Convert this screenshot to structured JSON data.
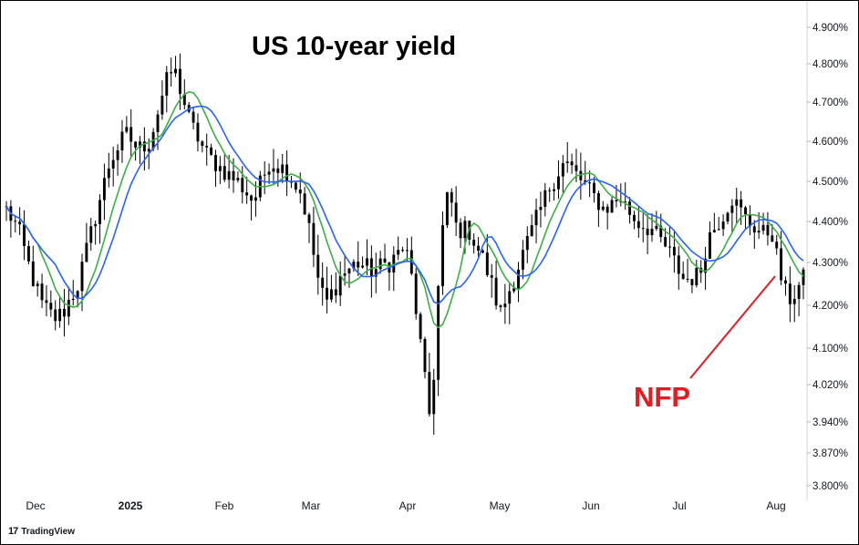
{
  "chart_data": {
    "type": "candlestick",
    "title": "US 10-year yield",
    "annotation": {
      "label": "NFP",
      "color": "#e21c22"
    },
    "y_axis": {
      "position": "right",
      "ylim": [
        3.78,
        4.92
      ],
      "ticks": [
        "3.800%",
        "3.870%",
        "3.940%",
        "4.020%",
        "4.100%",
        "4.200%",
        "4.300%",
        "4.400%",
        "4.500%",
        "4.600%",
        "4.700%",
        "4.800%",
        "4.900%"
      ],
      "tick_values": [
        3.8,
        3.87,
        3.94,
        4.02,
        4.1,
        4.2,
        4.3,
        4.4,
        4.5,
        4.6,
        4.7,
        4.8,
        4.9
      ]
    },
    "x_axis": {
      "labels": [
        "Dec",
        "2025",
        "Feb",
        "Mar",
        "Apr",
        "May",
        "Jun",
        "Jul",
        "Aug"
      ],
      "bold_labels": [
        "2025"
      ]
    },
    "grid": false,
    "price_path_approx": [
      [
        0,
        4.43
      ],
      [
        0.015,
        4.38
      ],
      [
        0.03,
        4.28
      ],
      [
        0.045,
        4.2
      ],
      [
        0.06,
        4.17
      ],
      [
        0.07,
        4.18
      ],
      [
        0.09,
        4.25
      ],
      [
        0.11,
        4.4
      ],
      [
        0.13,
        4.55
      ],
      [
        0.15,
        4.62
      ],
      [
        0.165,
        4.58
      ],
      [
        0.18,
        4.6
      ],
      [
        0.2,
        4.75
      ],
      [
        0.21,
        4.79
      ],
      [
        0.23,
        4.65
      ],
      [
        0.25,
        4.57
      ],
      [
        0.27,
        4.53
      ],
      [
        0.29,
        4.5
      ],
      [
        0.31,
        4.45
      ],
      [
        0.33,
        4.55
      ],
      [
        0.35,
        4.53
      ],
      [
        0.37,
        4.47
      ],
      [
        0.38,
        4.38
      ],
      [
        0.39,
        4.27
      ],
      [
        0.4,
        4.2
      ],
      [
        0.42,
        4.27
      ],
      [
        0.44,
        4.3
      ],
      [
        0.46,
        4.28
      ],
      [
        0.48,
        4.3
      ],
      [
        0.5,
        4.34
      ],
      [
        0.51,
        4.25
      ],
      [
        0.52,
        4.1
      ],
      [
        0.53,
        3.95
      ],
      [
        0.535,
        4.0
      ],
      [
        0.545,
        4.35
      ],
      [
        0.555,
        4.48
      ],
      [
        0.565,
        4.38
      ],
      [
        0.58,
        4.38
      ],
      [
        0.6,
        4.3
      ],
      [
        0.62,
        4.18
      ],
      [
        0.64,
        4.28
      ],
      [
        0.66,
        4.38
      ],
      [
        0.68,
        4.48
      ],
      [
        0.7,
        4.55
      ],
      [
        0.71,
        4.53
      ],
      [
        0.73,
        4.48
      ],
      [
        0.75,
        4.43
      ],
      [
        0.77,
        4.46
      ],
      [
        0.79,
        4.4
      ],
      [
        0.81,
        4.38
      ],
      [
        0.83,
        4.33
      ],
      [
        0.85,
        4.26
      ],
      [
        0.87,
        4.27
      ],
      [
        0.88,
        4.36
      ],
      [
        0.9,
        4.42
      ],
      [
        0.91,
        4.46
      ],
      [
        0.93,
        4.4
      ],
      [
        0.95,
        4.37
      ],
      [
        0.96,
        4.38
      ],
      [
        0.97,
        4.28
      ],
      [
        0.98,
        4.21
      ],
      [
        0.99,
        4.23
      ],
      [
        1.0,
        4.26
      ]
    ],
    "moving_averages": [
      {
        "name": "",
        "color": "#3cb043"
      },
      {
        "name": "",
        "color": "#2962ff"
      }
    ],
    "candle_color": "#000000"
  },
  "watermark": {
    "logo": "17",
    "text": "TradingView"
  }
}
